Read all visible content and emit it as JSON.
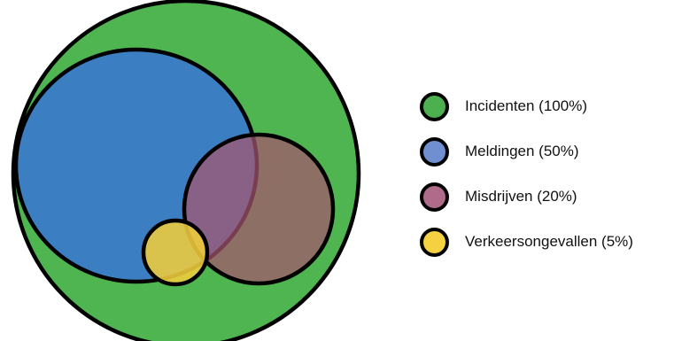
{
  "venn": {
    "sets": [
      {
        "label": "Incidenten (100%)",
        "share_percent": 100,
        "color": "#4eb550"
      },
      {
        "label": "Meldingen (50%)",
        "share_percent": 50,
        "color": "#3b7ec1"
      },
      {
        "label": "Misdrijven (20%)",
        "share_percent": 20,
        "color": "#a8556f"
      },
      {
        "label": "Verkeersongevallen (5%)",
        "share_percent": 5,
        "color": "#f0cd3c"
      }
    ],
    "legend_colors": [
      "#4caf50",
      "#6f8fd0",
      "#b06a8a",
      "#f5d142"
    ],
    "outline_color": "#000000"
  }
}
